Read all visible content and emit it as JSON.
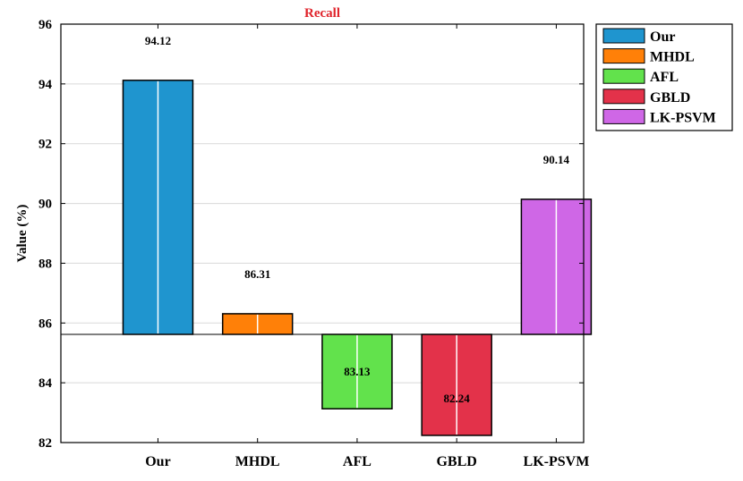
{
  "chart_data": {
    "type": "bar",
    "title": "Recall",
    "title_color": "#e0242c",
    "ylabel": "Value (%)",
    "xlabel": "",
    "ylim": [
      82,
      96
    ],
    "yticks": [
      82,
      84,
      86,
      88,
      90,
      92,
      94,
      96
    ],
    "baseline": 85.62,
    "grid": "horizontal",
    "legend_position": "outside-right-top",
    "categories": [
      "Our",
      "MHDL",
      "AFL",
      "GBLD",
      "LK-PSVM"
    ],
    "values": [
      94.12,
      86.31,
      83.13,
      82.24,
      90.14
    ],
    "value_labels": [
      "94.12",
      "86.31",
      "83.13",
      "82.24",
      "90.14"
    ],
    "colors": [
      "#1f95cf",
      "#ff8008",
      "#62e24c",
      "#e3324a",
      "#cf67e6"
    ],
    "legend": [
      "Our",
      "MHDL",
      "AFL",
      "GBLD",
      "LK-PSVM"
    ]
  }
}
